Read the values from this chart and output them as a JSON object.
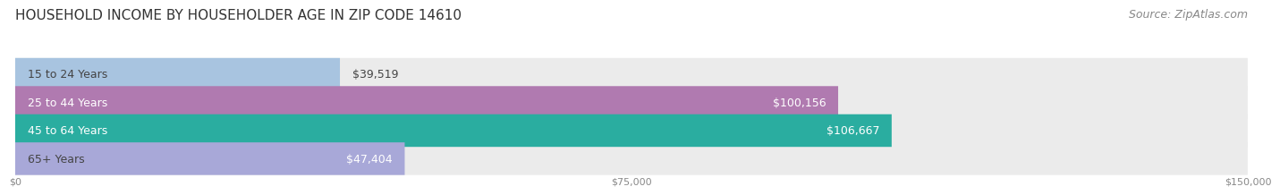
{
  "title": "HOUSEHOLD INCOME BY HOUSEHOLDER AGE IN ZIP CODE 14610",
  "source": "Source: ZipAtlas.com",
  "categories": [
    "15 to 24 Years",
    "25 to 44 Years",
    "45 to 64 Years",
    "65+ Years"
  ],
  "values": [
    39519,
    100156,
    106667,
    47404
  ],
  "bar_colors": [
    "#a8c4e0",
    "#b07ab0",
    "#2aada0",
    "#a8a8d8"
  ],
  "container_color": "#ebebeb",
  "label_colors": [
    "#444444",
    "#ffffff",
    "#ffffff",
    "#444444"
  ],
  "value_labels": [
    "$39,519",
    "$100,156",
    "$106,667",
    "$47,404"
  ],
  "xmax": 150000,
  "xticks": [
    0,
    75000,
    150000
  ],
  "xtick_labels": [
    "$0",
    "$75,000",
    "$150,000"
  ],
  "title_fontsize": 11,
  "source_fontsize": 9,
  "label_fontsize": 9,
  "value_fontsize": 9,
  "background_color": "#ffffff"
}
